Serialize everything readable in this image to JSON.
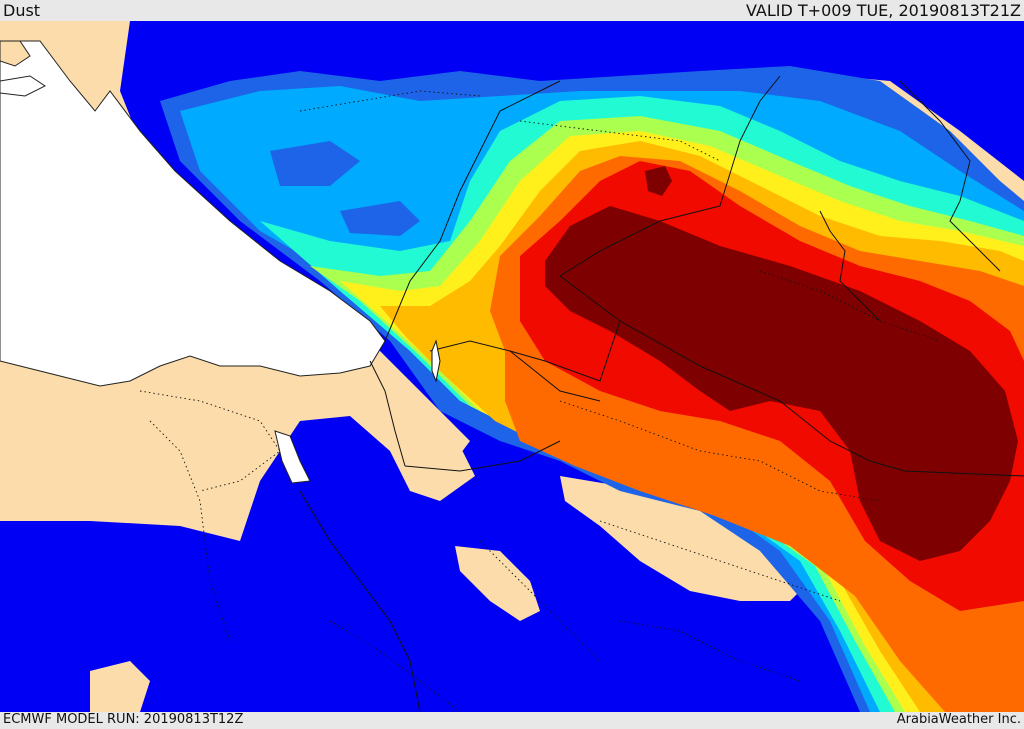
{
  "header": {
    "title": "Dust",
    "valid_time": "VALID T+009 TUE, 20190813T21Z"
  },
  "footer": {
    "model_run": "ECMWF MODEL RUN: 20190813T12Z",
    "credit": "ArabiaWeather Inc."
  },
  "colors": {
    "land": "#fbdcaa",
    "water": "#ffffff",
    "dust_scale": [
      "#0000f5",
      "#1d64e8",
      "#00aaff",
      "#21fad3",
      "#aaff4f",
      "#fff01c",
      "#ffbb00",
      "#ff6a00",
      "#f00a00",
      "#7f0000"
    ]
  }
}
